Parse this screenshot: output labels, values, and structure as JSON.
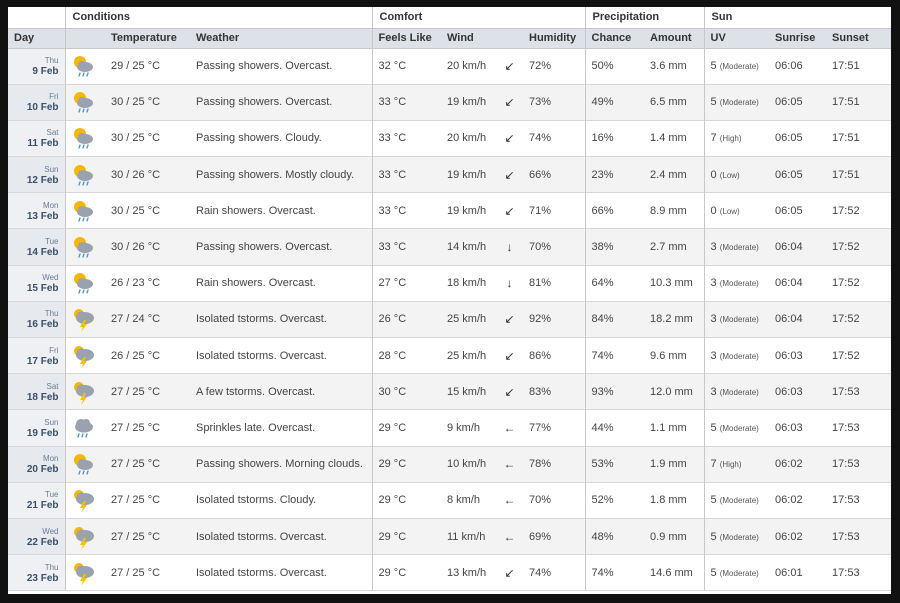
{
  "groups": {
    "conditions": "Conditions",
    "comfort": "Comfort",
    "precipitation": "Precipitation",
    "sun": "Sun"
  },
  "columns": {
    "day": "Day",
    "temperature": "Temperature",
    "weather": "Weather",
    "feels_like": "Feels Like",
    "wind": "Wind",
    "humidity": "Humidity",
    "chance": "Chance",
    "amount": "Amount",
    "uv": "UV",
    "sunrise": "Sunrise",
    "sunset": "Sunset"
  },
  "rows": [
    {
      "dow": "Thu",
      "date": "9 Feb",
      "icon": "sun-cloud-rain-icon",
      "temp": "29 / 25 °C",
      "weather": "Passing showers. Overcast.",
      "feels": "32 °C",
      "wind": "20 km/h",
      "dir": "↙",
      "humidity": "72%",
      "chance": "50%",
      "amount": "3.6 mm",
      "uv": "5",
      "uv_level": "(Moderate)",
      "sunrise": "06:06",
      "sunset": "17:51"
    },
    {
      "dow": "Fri",
      "date": "10 Feb",
      "icon": "sun-cloud-rain-icon",
      "temp": "30 / 25 °C",
      "weather": "Passing showers. Overcast.",
      "feels": "33 °C",
      "wind": "19 km/h",
      "dir": "↙",
      "humidity": "73%",
      "chance": "49%",
      "amount": "6.5 mm",
      "uv": "5",
      "uv_level": "(Moderate)",
      "sunrise": "06:05",
      "sunset": "17:51"
    },
    {
      "dow": "Sat",
      "date": "11 Feb",
      "icon": "sun-cloud-rain-icon",
      "temp": "30 / 25 °C",
      "weather": "Passing showers. Cloudy.",
      "feels": "33 °C",
      "wind": "20 km/h",
      "dir": "↙",
      "humidity": "74%",
      "chance": "16%",
      "amount": "1.4 mm",
      "uv": "7",
      "uv_level": "(High)",
      "sunrise": "06:05",
      "sunset": "17:51"
    },
    {
      "dow": "Sun",
      "date": "12 Feb",
      "icon": "sun-cloud-rain-icon",
      "temp": "30 / 26 °C",
      "weather": "Passing showers. Mostly cloudy.",
      "feels": "33 °C",
      "wind": "19 km/h",
      "dir": "↙",
      "humidity": "66%",
      "chance": "23%",
      "amount": "2.4 mm",
      "uv": "0",
      "uv_level": "(Low)",
      "sunrise": "06:05",
      "sunset": "17:51"
    },
    {
      "dow": "Mon",
      "date": "13 Feb",
      "icon": "sun-cloud-rain-icon",
      "temp": "30 / 25 °C",
      "weather": "Rain showers. Overcast.",
      "feels": "33 °C",
      "wind": "19 km/h",
      "dir": "↙",
      "humidity": "71%",
      "chance": "66%",
      "amount": "8.9 mm",
      "uv": "0",
      "uv_level": "(Low)",
      "sunrise": "06:05",
      "sunset": "17:52"
    },
    {
      "dow": "Tue",
      "date": "14 Feb",
      "icon": "sun-cloud-rain-icon",
      "temp": "30 / 26 °C",
      "weather": "Passing showers. Overcast.",
      "feels": "33 °C",
      "wind": "14 km/h",
      "dir": "↓",
      "humidity": "70%",
      "chance": "38%",
      "amount": "2.7 mm",
      "uv": "3",
      "uv_level": "(Moderate)",
      "sunrise": "06:04",
      "sunset": "17:52"
    },
    {
      "dow": "Wed",
      "date": "15 Feb",
      "icon": "sun-cloud-rain-icon",
      "temp": "26 / 23 °C",
      "weather": "Rain showers. Overcast.",
      "feels": "27 °C",
      "wind": "18 km/h",
      "dir": "↓",
      "humidity": "81%",
      "chance": "64%",
      "amount": "10.3 mm",
      "uv": "3",
      "uv_level": "(Moderate)",
      "sunrise": "06:04",
      "sunset": "17:52"
    },
    {
      "dow": "Thu",
      "date": "16 Feb",
      "icon": "thunderstorm-icon",
      "temp": "27 / 24 °C",
      "weather": "Isolated tstorms. Overcast.",
      "feels": "26 °C",
      "wind": "25 km/h",
      "dir": "↙",
      "humidity": "92%",
      "chance": "84%",
      "amount": "18.2 mm",
      "uv": "3",
      "uv_level": "(Moderate)",
      "sunrise": "06:04",
      "sunset": "17:52"
    },
    {
      "dow": "Fri",
      "date": "17 Feb",
      "icon": "thunderstorm-icon",
      "temp": "26 / 25 °C",
      "weather": "Isolated tstorms. Overcast.",
      "feels": "28 °C",
      "wind": "25 km/h",
      "dir": "↙",
      "humidity": "86%",
      "chance": "74%",
      "amount": "9.6 mm",
      "uv": "3",
      "uv_level": "(Moderate)",
      "sunrise": "06:03",
      "sunset": "17:52"
    },
    {
      "dow": "Sat",
      "date": "18 Feb",
      "icon": "thunderstorm-icon",
      "temp": "27 / 25 °C",
      "weather": "A few tstorms. Overcast.",
      "feels": "30 °C",
      "wind": "15 km/h",
      "dir": "↙",
      "humidity": "83%",
      "chance": "93%",
      "amount": "12.0 mm",
      "uv": "3",
      "uv_level": "(Moderate)",
      "sunrise": "06:03",
      "sunset": "17:53"
    },
    {
      "dow": "Sun",
      "date": "19 Feb",
      "icon": "cloud-drizzle-icon",
      "temp": "27 / 25 °C",
      "weather": "Sprinkles late. Overcast.",
      "feels": "29 °C",
      "wind": "9 km/h",
      "dir": "←",
      "humidity": "77%",
      "chance": "44%",
      "amount": "1.1 mm",
      "uv": "5",
      "uv_level": "(Moderate)",
      "sunrise": "06:03",
      "sunset": "17:53"
    },
    {
      "dow": "Mon",
      "date": "20 Feb",
      "icon": "sun-cloud-rain-icon",
      "temp": "27 / 25 °C",
      "weather": "Passing showers. Morning clouds.",
      "feels": "29 °C",
      "wind": "10 km/h",
      "dir": "←",
      "humidity": "78%",
      "chance": "53%",
      "amount": "1.9 mm",
      "uv": "7",
      "uv_level": "(High)",
      "sunrise": "06:02",
      "sunset": "17:53"
    },
    {
      "dow": "Tue",
      "date": "21 Feb",
      "icon": "thunderstorm-icon",
      "temp": "27 / 25 °C",
      "weather": "Isolated tstorms. Cloudy.",
      "feels": "29 °C",
      "wind": "8 km/h",
      "dir": "←",
      "humidity": "70%",
      "chance": "52%",
      "amount": "1.8 mm",
      "uv": "5",
      "uv_level": "(Moderate)",
      "sunrise": "06:02",
      "sunset": "17:53"
    },
    {
      "dow": "Wed",
      "date": "22 Feb",
      "icon": "thunderstorm-icon",
      "temp": "27 / 25 °C",
      "weather": "Isolated tstorms. Overcast.",
      "feels": "29 °C",
      "wind": "11 km/h",
      "dir": "←",
      "humidity": "69%",
      "chance": "48%",
      "amount": "0.9 mm",
      "uv": "5",
      "uv_level": "(Moderate)",
      "sunrise": "06:02",
      "sunset": "17:53"
    },
    {
      "dow": "Thu",
      "date": "23 Feb",
      "icon": "thunderstorm-icon",
      "temp": "27 / 25 °C",
      "weather": "Isolated tstorms. Overcast.",
      "feels": "29 °C",
      "wind": "13 km/h",
      "dir": "↙",
      "humidity": "74%",
      "chance": "74%",
      "amount": "14.6 mm",
      "uv": "5",
      "uv_level": "(Moderate)",
      "sunrise": "06:01",
      "sunset": "17:53"
    }
  ],
  "colors": {
    "header_bg": "#dde2e8",
    "day_text": "#3a4f69",
    "sun": "#f5b700",
    "cloud": "#9aa3ad",
    "rain": "#4a90d9",
    "lightning": "#f5c400"
  }
}
